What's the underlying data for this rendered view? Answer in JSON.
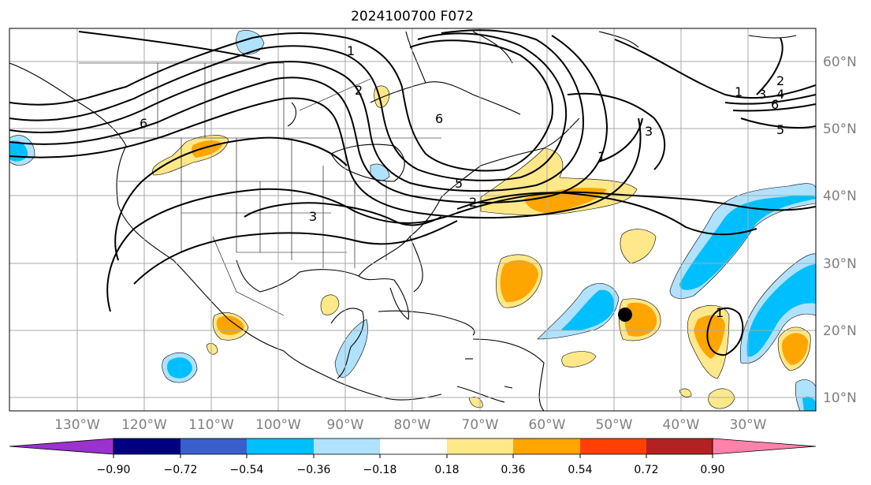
{
  "title": "2024100700 F072",
  "lat_labels": [
    "60°N",
    "50°N",
    "40°N",
    "30°N",
    "20°N",
    "10°N"
  ],
  "lon_labels": [
    "130°W",
    "120°W",
    "110°W",
    "100°W",
    "90°W",
    "80°W",
    "70°W",
    "60°W",
    "50°W",
    "40°W",
    "30°W"
  ],
  "contour_labels": [
    "1",
    "2",
    "3",
    "4",
    "5",
    "6"
  ],
  "colorbar": {
    "ticks": [
      "−0.90",
      "−0.72",
      "−0.54",
      "−0.36",
      "−0.18",
      "0.18",
      "0.36",
      "0.54",
      "0.72",
      "0.90"
    ],
    "colors": [
      "#9a32cd",
      "#000080",
      "#3a5fcd",
      "#00bfff",
      "#b0e2ff",
      "#ffffff",
      "#ffe88a",
      "#ffa500",
      "#ff4000",
      "#b22222",
      "#ff82ab"
    ]
  },
  "colors": {
    "neg_light": "#b0e2ff",
    "neg_mid": "#00bfff",
    "pos_light": "#ffe88a",
    "pos_mid": "#ffa500",
    "grid": "#aaaaaa",
    "marker": "#000000"
  }
}
